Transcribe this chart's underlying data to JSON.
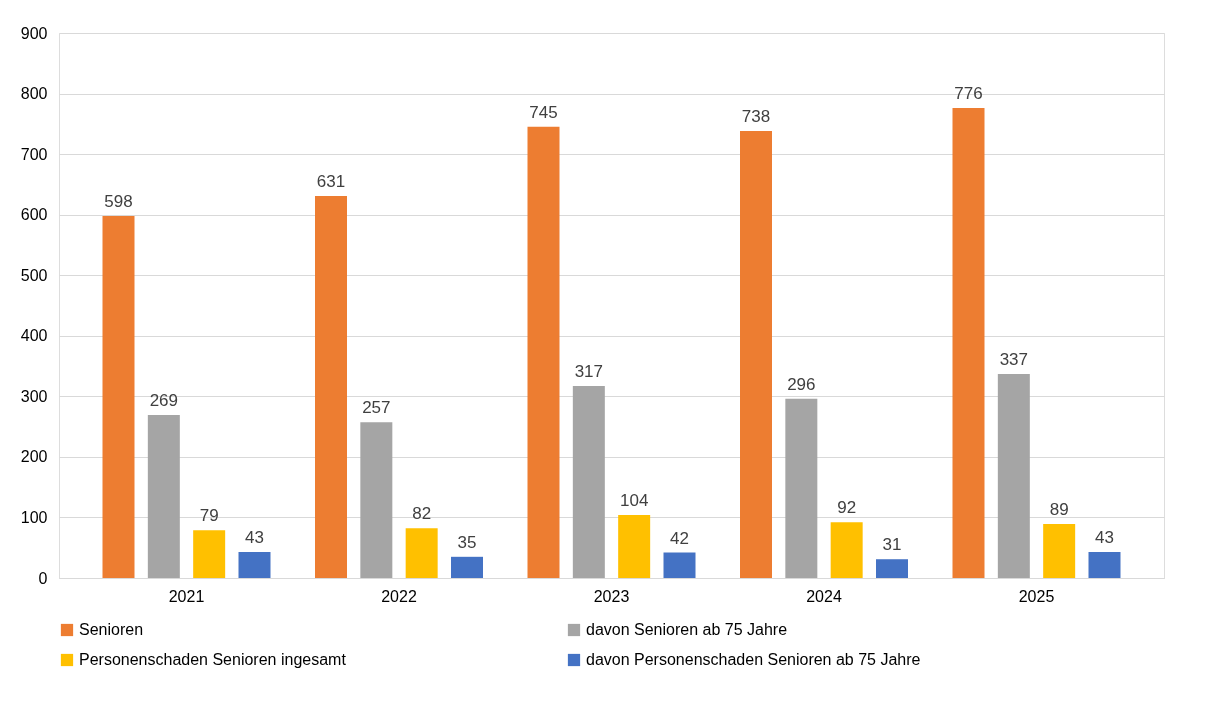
{
  "chart_data": {
    "type": "bar",
    "categories": [
      "2021",
      "2022",
      "2023",
      "2024",
      "2025"
    ],
    "series": [
      {
        "name": "Senioren",
        "color": "#ed7d31",
        "values": [
          598,
          631,
          745,
          738,
          776
        ]
      },
      {
        "name": "davon Senioren ab 75 Jahre",
        "color": "#a5a5a5",
        "values": [
          269,
          257,
          317,
          296,
          337
        ]
      },
      {
        "name": "Personenschaden Senioren ingesamt",
        "color": "#ffc000",
        "values": [
          79,
          82,
          104,
          92,
          89
        ]
      },
      {
        "name": "davon Personenschaden Senioren ab 75 Jahre",
        "color": "#4472c4",
        "values": [
          43,
          35,
          42,
          31,
          43
        ]
      }
    ],
    "ylim": [
      0,
      900
    ],
    "yticks": [
      0,
      100,
      200,
      300,
      400,
      500,
      600,
      700,
      800,
      900
    ],
    "grid": "y",
    "legend": "bottom",
    "data_labels": true
  }
}
